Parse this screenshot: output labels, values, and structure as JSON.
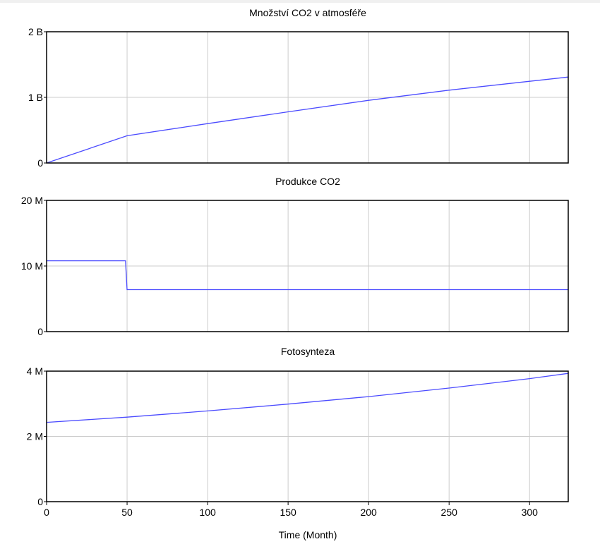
{
  "chart_data": [
    {
      "type": "line",
      "title": "Množství CO2 v atmosféře",
      "ylim": [
        0,
        2000000000
      ],
      "yticks": [
        0,
        1000000000,
        2000000000
      ],
      "ytick_labels": [
        "0",
        "1 B",
        "2 B"
      ],
      "xlim": [
        0,
        324
      ],
      "grid": true,
      "line_color": "#4b4bff",
      "series": [
        {
          "x": [
            0,
            50,
            100,
            150,
            200,
            250,
            300,
            324
          ],
          "values": [
            0,
            415000000,
            600000000,
            780000000,
            955000000,
            1110000000,
            1245000000,
            1310000000
          ]
        }
      ]
    },
    {
      "type": "line",
      "title": "Produkce CO2",
      "ylim": [
        0,
        20000000
      ],
      "yticks": [
        0,
        10000000,
        20000000
      ],
      "ytick_labels": [
        "0",
        "10 M",
        "20 M"
      ],
      "xlim": [
        0,
        324
      ],
      "grid": true,
      "line_color": "#4b4bff",
      "series": [
        {
          "x": [
            0,
            49,
            50,
            324
          ],
          "values": [
            10800000,
            10800000,
            6400000,
            6400000
          ]
        }
      ]
    },
    {
      "type": "line",
      "title": "Fotosynteza",
      "xlabel": "Time (Month)",
      "ylim": [
        0,
        4000000
      ],
      "yticks": [
        0,
        2000000,
        4000000
      ],
      "ytick_labels": [
        "0",
        "2 M",
        "4 M"
      ],
      "xlim": [
        0,
        324
      ],
      "xticks": [
        0,
        50,
        100,
        150,
        200,
        250,
        300
      ],
      "xtick_labels": [
        "0",
        "50",
        "100",
        "150",
        "200",
        "250",
        "300"
      ],
      "grid": true,
      "line_color": "#4b4bff",
      "series": [
        {
          "x": [
            0,
            50,
            100,
            150,
            200,
            250,
            300,
            324
          ],
          "values": [
            2430000,
            2590000,
            2780000,
            2990000,
            3220000,
            3480000,
            3770000,
            3930000
          ]
        }
      ]
    }
  ]
}
